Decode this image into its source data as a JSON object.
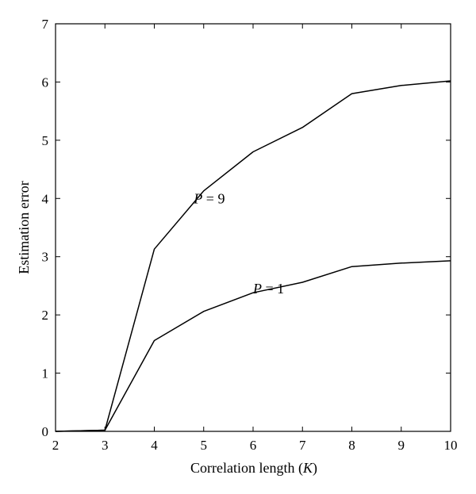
{
  "chart_data": {
    "type": "line",
    "title": "",
    "xlabel_prefix": "Correlation length (",
    "xlabel_var": "K",
    "xlabel_suffix": ")",
    "ylabel": "Estimation error",
    "xlim": [
      2,
      10
    ],
    "ylim": [
      0,
      7
    ],
    "xticks": [
      "2",
      "3",
      "4",
      "5",
      "6",
      "7",
      "8",
      "9",
      "10"
    ],
    "yticks": [
      "0",
      "1",
      "2",
      "3",
      "4",
      "5",
      "6",
      "7"
    ],
    "grid": false,
    "legend": "none",
    "x": [
      2,
      3,
      4,
      5,
      6,
      7,
      8,
      9,
      10
    ],
    "series": [
      {
        "name": "P = 9",
        "label_var": "P",
        "label_rest": " = 9",
        "values": [
          0,
          0.02,
          3.13,
          4.13,
          4.8,
          5.22,
          5.8,
          5.94,
          6.02
        ],
        "label_at": [
          4.8,
          4.0
        ]
      },
      {
        "name": "P = 1",
        "label_var": "P",
        "label_rest": " = 1",
        "values": [
          0,
          0.02,
          1.56,
          2.06,
          2.38,
          2.56,
          2.83,
          2.89,
          2.93
        ],
        "label_at": [
          6.0,
          2.45
        ]
      }
    ],
    "line_color": "#000000"
  }
}
